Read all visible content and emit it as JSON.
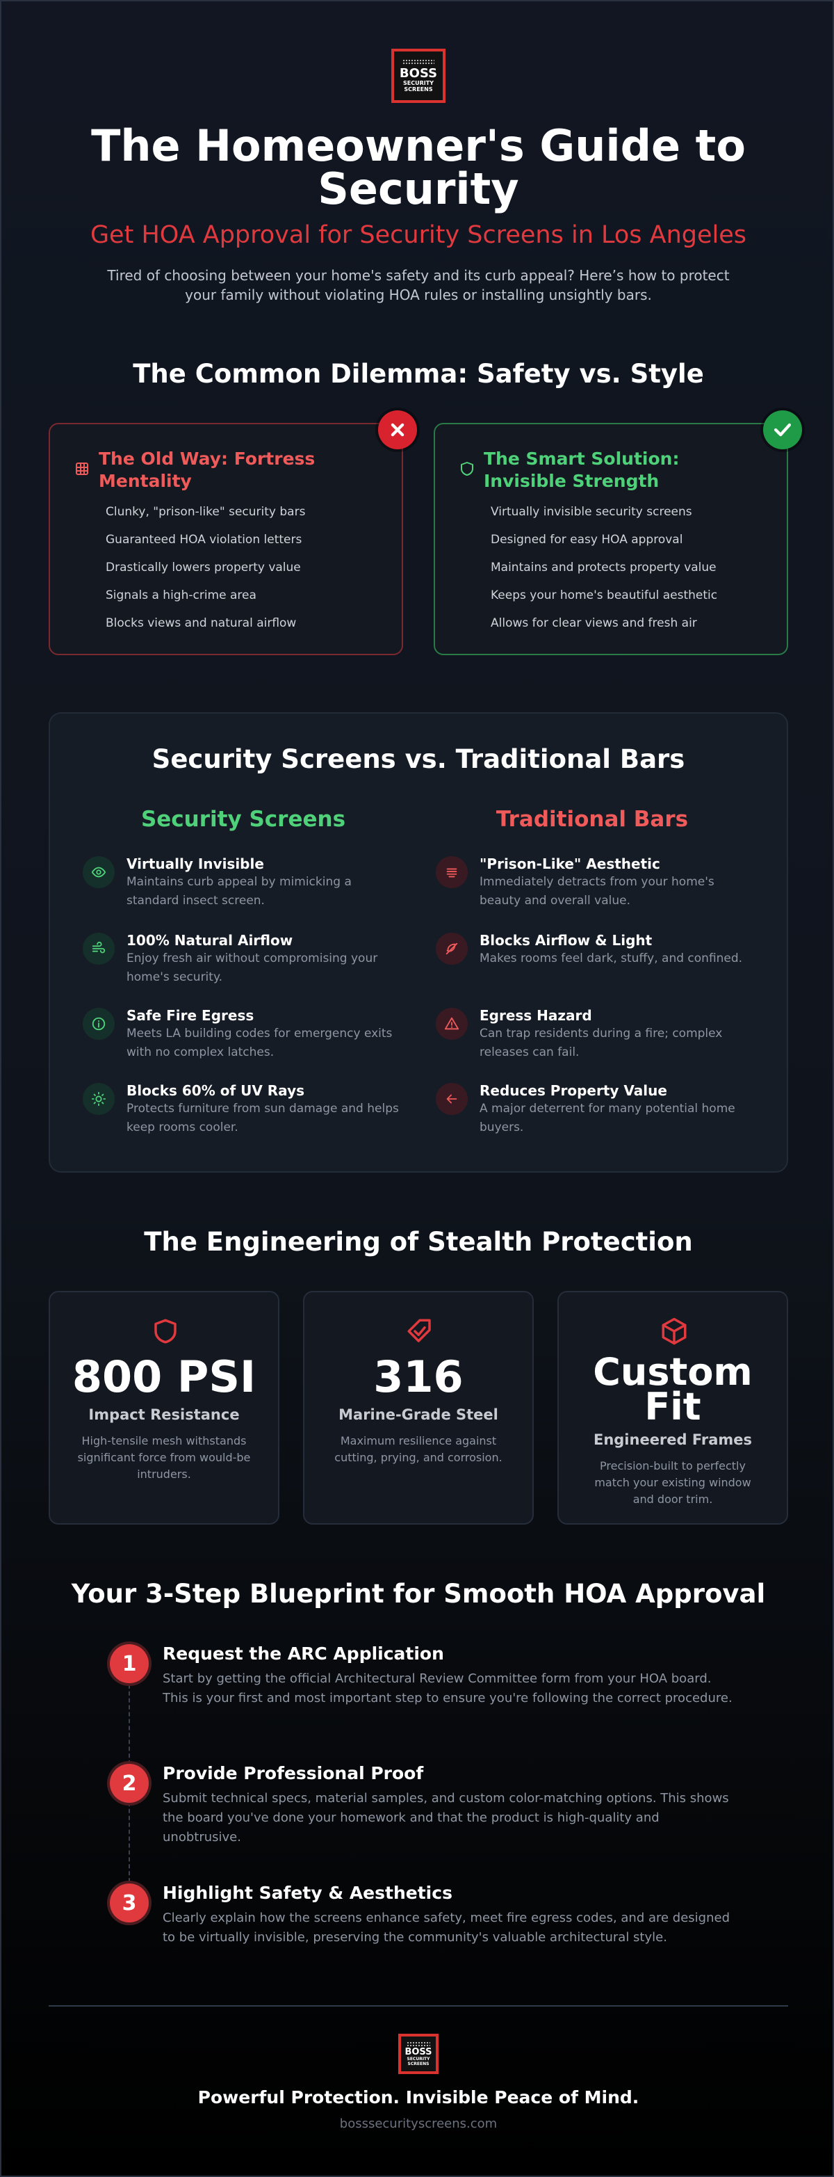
{
  "header": {
    "logo": [
      "BOSS",
      "SECURITY",
      "SCREENS"
    ],
    "title": "The Homeowner's Guide to Security",
    "subtitle": "Get HOA Approval for Security Screens in Los Angeles",
    "intro": "Tired of choosing between your home's safety and its curb appeal? Here’s how to protect your family without violating HOA rules or installing unsightly bars."
  },
  "dilemma": {
    "heading": "The Common Dilemma: Safety vs. Style",
    "cards": [
      {
        "title": "The Old Way: Fortress Mentality",
        "items": [
          "Clunky, \"prison-like\" security bars",
          "Guaranteed HOA violation letters",
          "Drastically lowers property value",
          "Signals a high-crime area",
          "Blocks views and natural airflow"
        ]
      },
      {
        "title": "The Smart Solution: Invisible Strength",
        "items": [
          "Virtually invisible security screens",
          "Designed for easy HOA approval",
          "Maintains and protects property value",
          "Keeps your home's beautiful aesthetic",
          "Allows for clear views and fresh air"
        ]
      }
    ]
  },
  "comparison": {
    "heading": "Security Screens vs. Traditional Bars",
    "columns": [
      {
        "heading": "Security Screens",
        "items": [
          {
            "title": "Virtually Invisible",
            "text": "Maintains curb appeal by mimicking a standard insect screen."
          },
          {
            "title": "100% Natural Airflow",
            "text": "Enjoy fresh air without compromising your home's security."
          },
          {
            "title": "Safe Fire Egress",
            "text": "Meets LA building codes for emergency exits with no complex latches."
          },
          {
            "title": "Blocks 60% of UV Rays",
            "text": "Protects furniture from sun damage and helps keep rooms cooler."
          }
        ]
      },
      {
        "heading": "Traditional Bars",
        "items": [
          {
            "title": "\"Prison-Like\" Aesthetic",
            "text": "Immediately detracts from your home's beauty and overall value."
          },
          {
            "title": "Blocks Airflow & Light",
            "text": "Makes rooms feel dark, stuffy, and confined."
          },
          {
            "title": "Egress Hazard",
            "text": "Can trap residents during a fire; complex releases can fail."
          },
          {
            "title": "Reduces Property Value",
            "text": "A major deterrent for many potential home buyers."
          }
        ]
      }
    ]
  },
  "engineering": {
    "heading": "The Engineering of Stealth Protection",
    "stats": [
      {
        "value": "800 PSI",
        "label": "Impact Resistance",
        "text": "High-tensile mesh withstands significant force from would-be intruders."
      },
      {
        "value": "316",
        "label": "Marine-Grade Steel",
        "text": "Maximum resilience against cutting, prying, and corrosion."
      },
      {
        "value": "Custom Fit",
        "label": "Engineered Frames",
        "text": "Precision-built to perfectly match your existing window and door trim."
      }
    ]
  },
  "blueprint": {
    "heading": "Your 3-Step Blueprint for Smooth HOA Approval",
    "steps": [
      {
        "number": 1,
        "title": "Request the ARC Application",
        "text": "Start by getting the official Architectural Review Committee form from your HOA board. This is your first and most important step to ensure you're following the correct procedure."
      },
      {
        "number": 2,
        "title": "Provide Professional Proof",
        "text": "Submit technical specs, material samples, and custom color-matching options. This shows the board you've done your homework and that the product is high-quality and unobtrusive."
      },
      {
        "number": 3,
        "title": "Highlight Safety & Aesthetics",
        "text": "Clearly explain how the screens enhance safety, meet fire egress codes, and are designed to be virtually invisible, preserving the community's valuable architectural style."
      }
    ]
  },
  "footer": {
    "logo": [
      "BOSS",
      "SECURITY",
      "SCREENS"
    ],
    "tagline": "Powerful Protection. Invisible Peace of Mind.",
    "url": "bosssecurityscreens.com"
  }
}
